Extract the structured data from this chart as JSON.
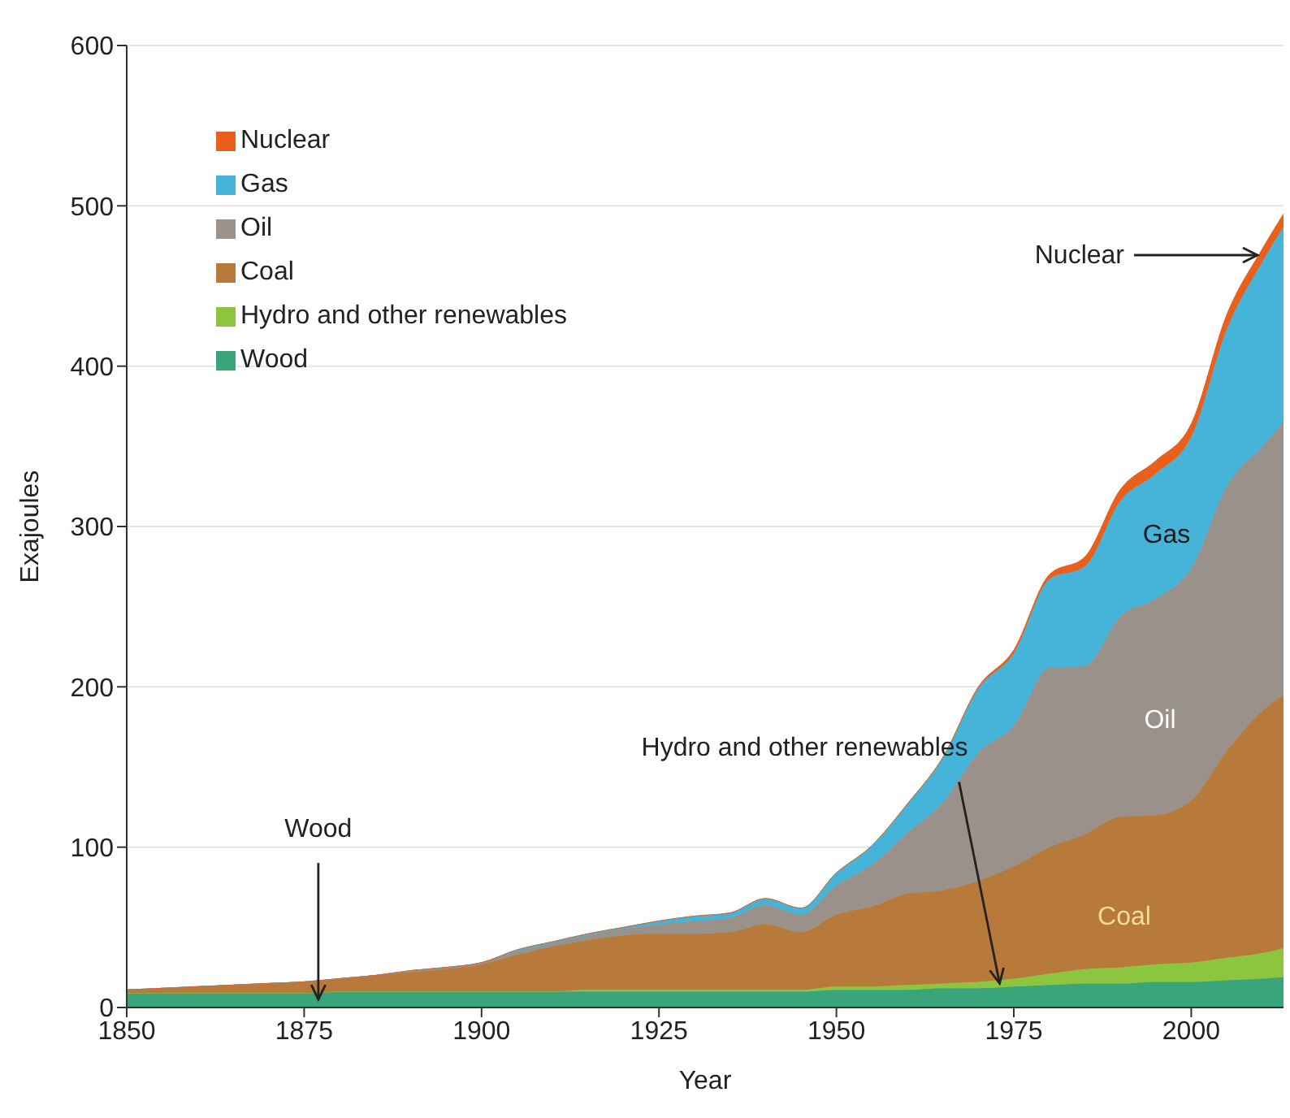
{
  "chart_data": {
    "type": "area",
    "stacked": true,
    "xlabel": "Year",
    "ylabel": "Exajoules",
    "x": [
      1850,
      1855,
      1860,
      1865,
      1870,
      1875,
      1880,
      1885,
      1890,
      1895,
      1900,
      1905,
      1910,
      1915,
      1920,
      1925,
      1930,
      1935,
      1940,
      1945,
      1950,
      1955,
      1960,
      1965,
      1970,
      1975,
      1980,
      1985,
      1990,
      1995,
      2000,
      2005,
      2010,
      2013
    ],
    "series": [
      {
        "name": "Wood",
        "color": "#3aa57a",
        "values": [
          9,
          9,
          9,
          9,
          9,
          9,
          10,
          10,
          10,
          10,
          10,
          10,
          10,
          10,
          10,
          10,
          10,
          10,
          10,
          10,
          11,
          11,
          11,
          12,
          12,
          13,
          14,
          15,
          15,
          16,
          16,
          17,
          18,
          19
        ]
      },
      {
        "name": "Hydro and other renewables",
        "color": "#8cc63f",
        "values": [
          0,
          0,
          0,
          0,
          0,
          0,
          0,
          0,
          0,
          0,
          0,
          0,
          0,
          1,
          1,
          1,
          1,
          1,
          1,
          1,
          2,
          2,
          3,
          3,
          4,
          5,
          7,
          9,
          10,
          11,
          12,
          14,
          16,
          18
        ]
      },
      {
        "name": "Coal",
        "color": "#b87a3a",
        "values": [
          2,
          3,
          4,
          5,
          6,
          7,
          8,
          10,
          12,
          14,
          17,
          23,
          28,
          31,
          34,
          35,
          35,
          36,
          41,
          36,
          45,
          50,
          57,
          58,
          63,
          70,
          79,
          84,
          94,
          93,
          101,
          129,
          151,
          158
        ]
      },
      {
        "name": "Oil",
        "color": "#9a918a",
        "values": [
          0,
          0,
          0,
          0,
          0,
          0,
          0,
          0,
          1,
          1,
          1,
          2,
          2,
          3,
          4,
          6,
          8,
          9,
          12,
          11,
          18,
          26,
          38,
          55,
          80,
          88,
          112,
          105,
          125,
          135,
          145,
          165,
          165,
          170
        ]
      },
      {
        "name": "Gas",
        "color": "#45b4d8",
        "values": [
          0,
          0,
          0,
          0,
          0,
          0,
          0,
          0,
          0,
          0,
          0,
          1,
          1,
          1,
          1,
          2,
          3,
          3,
          4,
          4,
          8,
          12,
          18,
          28,
          40,
          45,
          55,
          62,
          72,
          78,
          82,
          98,
          115,
          122
        ]
      },
      {
        "name": "Nuclear",
        "color": "#e8601c",
        "values": [
          0,
          0,
          0,
          0,
          0,
          0,
          0,
          0,
          0,
          0,
          0,
          0,
          0,
          0,
          0,
          0,
          0,
          0,
          0,
          0,
          0,
          0,
          0,
          0,
          1,
          2,
          3,
          6,
          7,
          8,
          8,
          9,
          8,
          8
        ]
      }
    ],
    "xlim": [
      1850,
      2013
    ],
    "xticks": [
      1850,
      1875,
      1900,
      1925,
      1950,
      1975,
      2000
    ],
    "ylim": [
      0,
      600
    ],
    "yticks": [
      0,
      100,
      200,
      300,
      400,
      500,
      600
    ],
    "grid": "y",
    "legend": "top left",
    "annotations": [
      "Nuclear",
      "Gas",
      "Oil",
      "Coal",
      {
        "text": "Hydro and other renewables",
        "x": 1973,
        "y": 15
      },
      {
        "text": "Wood",
        "x": 1877,
        "y": 5
      }
    ]
  }
}
